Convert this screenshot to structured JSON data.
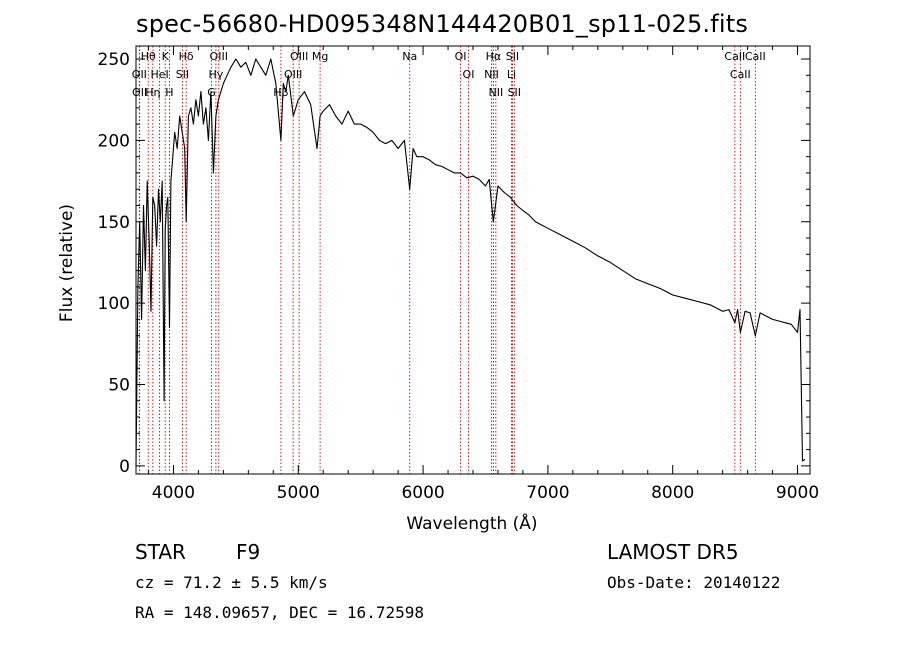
{
  "title": "spec-56680-HD095348N144420B01_sp11-025.fits",
  "footer": {
    "object_class": "STAR",
    "subclass": "F9",
    "survey": "LAMOST DR5",
    "redshift": "cz = 71.2 ± 5.5 km/s",
    "obs_date": "Obs-Date: 20140122",
    "coords": "RA = 148.09657, DEC =  16.72598"
  },
  "chart_data": {
    "type": "line",
    "xlabel": "Wavelength (Å)",
    "ylabel": "Flux (relative)",
    "xlim": [
      3700,
      9100
    ],
    "ylim": [
      -5,
      258
    ],
    "x_ticks": [
      4000,
      5000,
      6000,
      7000,
      8000,
      9000
    ],
    "y_ticks": [
      0,
      50,
      100,
      150,
      200,
      250
    ],
    "colors": {
      "spectrum": "#000000",
      "line_markers": "#cc0000"
    },
    "series": [
      {
        "x": [
          3700,
          3715,
          3730,
          3745,
          3760,
          3775,
          3790,
          3805,
          3820,
          3835,
          3850,
          3865,
          3880,
          3895,
          3910,
          3925,
          3934,
          3945,
          3955,
          3968,
          3980,
          3995,
          4010,
          4030,
          4050,
          4070,
          4090,
          4102,
          4120,
          4140,
          4160,
          4180,
          4200,
          4220,
          4240,
          4260,
          4280,
          4300,
          4320,
          4340,
          4360,
          4380,
          4400,
          4430,
          4460,
          4500,
          4540,
          4580,
          4620,
          4660,
          4700,
          4740,
          4780,
          4820,
          4861,
          4880,
          4900,
          4920,
          4960,
          5000,
          5050,
          5100,
          5150,
          5175,
          5200,
          5250,
          5300,
          5350,
          5400,
          5450,
          5500,
          5550,
          5600,
          5650,
          5700,
          5750,
          5800,
          5850,
          5893,
          5920,
          5950,
          6000,
          6050,
          6100,
          6150,
          6200,
          6250,
          6300,
          6350,
          6400,
          6450,
          6500,
          6530,
          6563,
          6600,
          6650,
          6700,
          6750,
          6800,
          6850,
          6900,
          6950,
          7000,
          7100,
          7200,
          7300,
          7400,
          7500,
          7600,
          7700,
          7800,
          7900,
          8000,
          8100,
          8200,
          8300,
          8400,
          8450,
          8498,
          8520,
          8542,
          8580,
          8620,
          8662,
          8700,
          8750,
          8800,
          8850,
          8900,
          8950,
          9000,
          9020,
          9040,
          9060
        ],
        "y": [
          0,
          110,
          150,
          90,
          160,
          120,
          175,
          140,
          95,
          165,
          160,
          135,
          170,
          150,
          175,
          40,
          145,
          160,
          165,
          85,
          175,
          190,
          205,
          195,
          215,
          205,
          195,
          150,
          215,
          220,
          210,
          225,
          215,
          230,
          210,
          220,
          200,
          230,
          180,
          215,
          225,
          230,
          235,
          240,
          245,
          250,
          245,
          248,
          240,
          250,
          245,
          240,
          250,
          235,
          200,
          235,
          230,
          240,
          215,
          225,
          230,
          222,
          195,
          215,
          218,
          222,
          215,
          210,
          218,
          210,
          210,
          208,
          205,
          200,
          198,
          200,
          195,
          200,
          170,
          195,
          190,
          190,
          188,
          185,
          184,
          182,
          180,
          180,
          177,
          178,
          176,
          172,
          176,
          150,
          172,
          168,
          165,
          160,
          157,
          154,
          150,
          148,
          146,
          142,
          138,
          134,
          129,
          125,
          120,
          115,
          112,
          109,
          105,
          103,
          101,
          99,
          95,
          96,
          88,
          96,
          82,
          95,
          94,
          80,
          94,
          92,
          90,
          89,
          88,
          87,
          82,
          96,
          3,
          4
        ]
      }
    ],
    "line_markers": [
      {
        "label": "Hθ",
        "wavelength": 3798
      },
      {
        "label": "OII",
        "wavelength": 3727
      },
      {
        "label": "OII",
        "wavelength": 3729
      },
      {
        "label": "Hη",
        "wavelength": 3835
      },
      {
        "label": "HeI",
        "wavelength": 3889
      },
      {
        "label": "K",
        "wavelength": 3934
      },
      {
        "label": "H",
        "wavelength": 3968
      },
      {
        "label": "Hδ",
        "wavelength": 4102
      },
      {
        "label": "SII",
        "wavelength": 4072
      },
      {
        "label": "OIII",
        "wavelength": 4363
      },
      {
        "label": "Hγ",
        "wavelength": 4340
      },
      {
        "label": "G",
        "wavelength": 4305
      },
      {
        "label": "OIII",
        "wavelength": 5007
      },
      {
        "label": "OIII",
        "wavelength": 4959
      },
      {
        "label": "Hβ",
        "wavelength": 4861
      },
      {
        "label": "Mg",
        "wavelength": 5175
      },
      {
        "label": "Na",
        "wavelength": 5893
      },
      {
        "label": "OI",
        "wavelength": 6300
      },
      {
        "label": "OI",
        "wavelength": 6364
      },
      {
        "label": "Hα",
        "wavelength": 6563
      },
      {
        "label": "NII",
        "wavelength": 6548
      },
      {
        "label": "NII",
        "wavelength": 6583
      },
      {
        "label": "SII",
        "wavelength": 6716
      },
      {
        "label": "Li",
        "wavelength": 6708
      },
      {
        "label": "SII",
        "wavelength": 6731
      },
      {
        "label": "CaII",
        "wavelength": 8498
      },
      {
        "label": "CaII",
        "wavelength": 8542
      },
      {
        "label": "CaII",
        "wavelength": 8662
      }
    ]
  }
}
